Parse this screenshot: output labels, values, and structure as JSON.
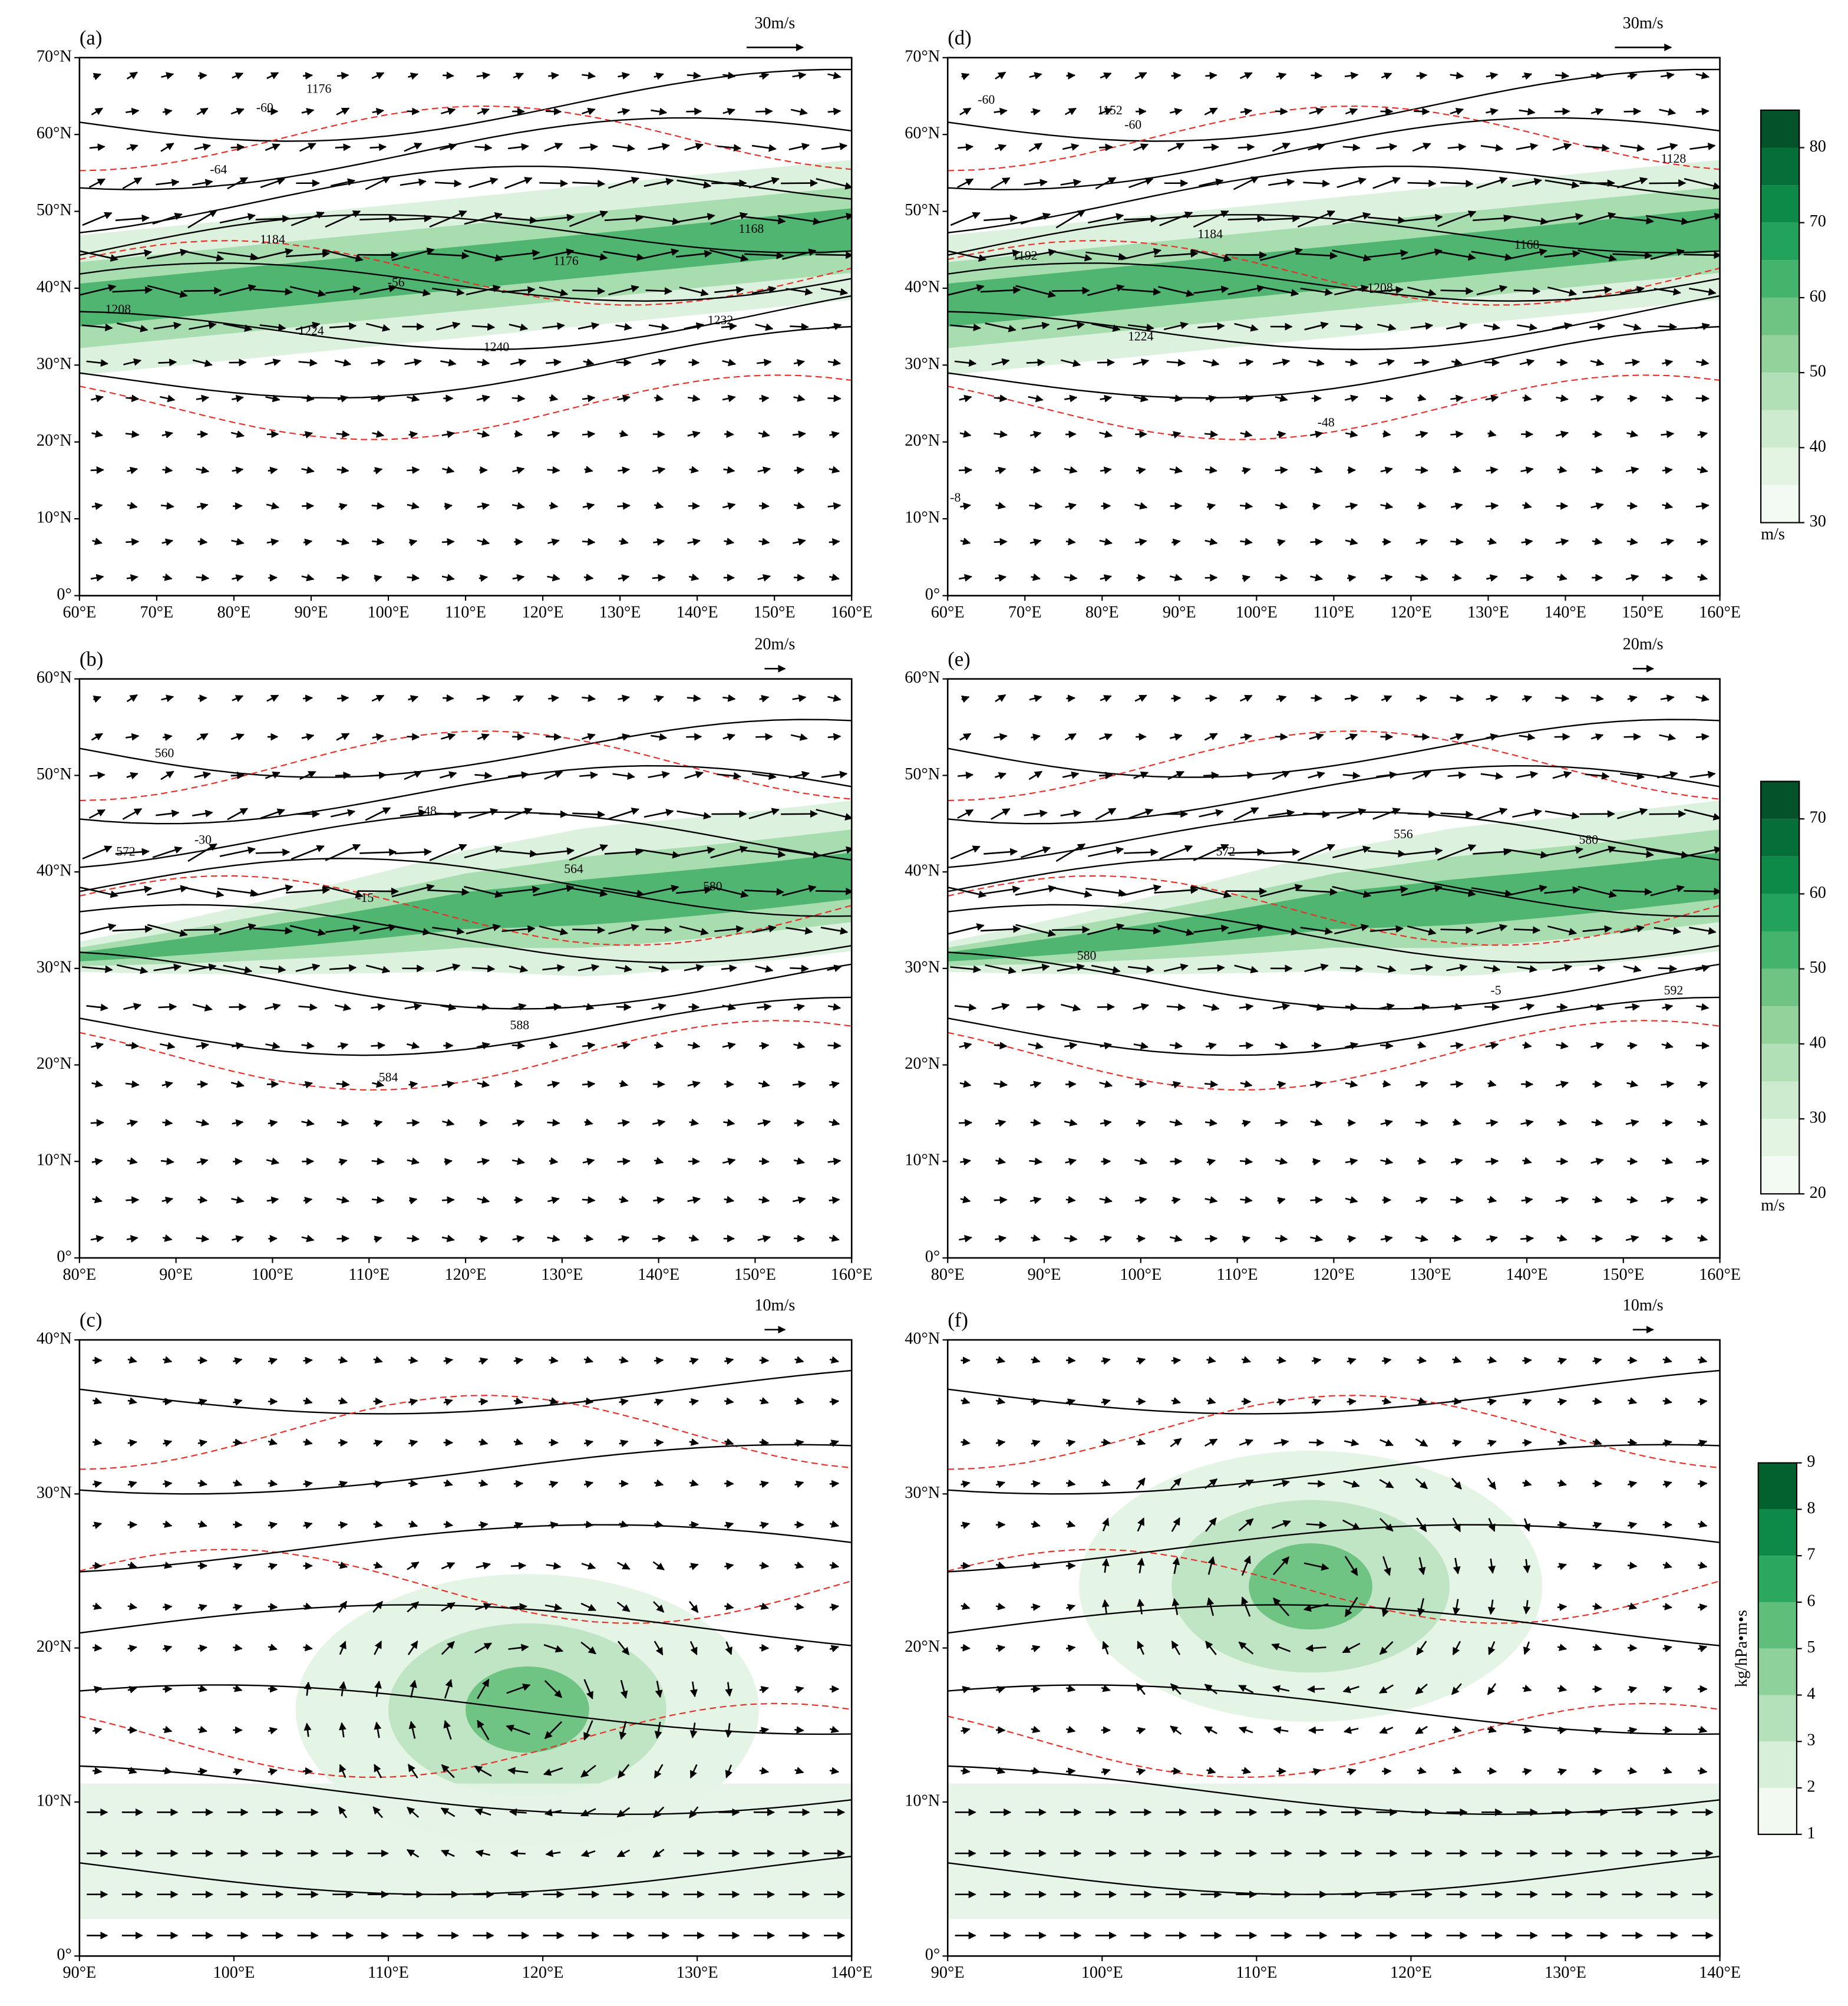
{
  "panels": [
    {
      "label": "(a)",
      "reference_vector": "30m/s",
      "xlim": [
        60,
        160
      ],
      "ylim": [
        0,
        70
      ],
      "xticks": [
        {
          "value": 60,
          "label": "60°E"
        },
        {
          "value": 70,
          "label": "70°E"
        },
        {
          "value": 80,
          "label": "80°E"
        },
        {
          "value": 90,
          "label": "90°E"
        },
        {
          "value": 100,
          "label": "100°E"
        },
        {
          "value": 110,
          "label": "110°E"
        },
        {
          "value": 120,
          "label": "120°E"
        },
        {
          "value": 130,
          "label": "130°E"
        },
        {
          "value": 140,
          "label": "140°E"
        },
        {
          "value": 150,
          "label": "150°E"
        },
        {
          "value": 160,
          "label": "160°E"
        }
      ],
      "yticks": [
        {
          "value": 0,
          "label": "0°"
        },
        {
          "value": 10,
          "label": "10°N"
        },
        {
          "value": 20,
          "label": "20°N"
        },
        {
          "value": 30,
          "label": "30°N"
        },
        {
          "value": 40,
          "label": "40°N"
        },
        {
          "value": 50,
          "label": "50°N"
        },
        {
          "value": 60,
          "label": "60°N"
        },
        {
          "value": 70,
          "label": "70°N"
        }
      ],
      "contour_labels": [
        "1176",
        "-60",
        "-64",
        "1184",
        "-56",
        "1176",
        "1168",
        "1232",
        "1224",
        "1240",
        "1208"
      ]
    },
    {
      "label": "(b)",
      "reference_vector": "20m/s",
      "xlim": [
        80,
        160
      ],
      "ylim": [
        0,
        60
      ],
      "xticks": [
        {
          "value": 80,
          "label": "80°E"
        },
        {
          "value": 90,
          "label": "90°E"
        },
        {
          "value": 100,
          "label": "100°E"
        },
        {
          "value": 110,
          "label": "110°E"
        },
        {
          "value": 120,
          "label": "120°E"
        },
        {
          "value": 130,
          "label": "130°E"
        },
        {
          "value": 140,
          "label": "140°E"
        },
        {
          "value": 150,
          "label": "150°E"
        },
        {
          "value": 160,
          "label": "160°E"
        }
      ],
      "yticks": [
        {
          "value": 0,
          "label": "0°"
        },
        {
          "value": 10,
          "label": "10°N"
        },
        {
          "value": 20,
          "label": "20°N"
        },
        {
          "value": 30,
          "label": "30°N"
        },
        {
          "value": 40,
          "label": "40°N"
        },
        {
          "value": 50,
          "label": "50°N"
        },
        {
          "value": 60,
          "label": "60°N"
        }
      ],
      "contour_labels": [
        "560",
        "548",
        "-30",
        "572",
        "564",
        "580",
        "-15",
        "584",
        "588"
      ]
    },
    {
      "label": "(c)",
      "reference_vector": "10m/s",
      "xlim": [
        90,
        140
      ],
      "ylim": [
        0,
        40
      ],
      "xticks": [
        {
          "value": 90,
          "label": "90°E"
        },
        {
          "value": 100,
          "label": "100°E"
        },
        {
          "value": 110,
          "label": "110°E"
        },
        {
          "value": 120,
          "label": "120°E"
        },
        {
          "value": 130,
          "label": "130°E"
        },
        {
          "value": 140,
          "label": "140°E"
        }
      ],
      "yticks": [
        {
          "value": 0,
          "label": "0°"
        },
        {
          "value": 10,
          "label": "10°N"
        },
        {
          "value": 20,
          "label": "20°N"
        },
        {
          "value": 30,
          "label": "30°N"
        },
        {
          "value": 40,
          "label": "40°N"
        }
      ],
      "contour_labels": []
    },
    {
      "label": "(d)",
      "reference_vector": "30m/s",
      "xlim": [
        60,
        160
      ],
      "ylim": [
        0,
        70
      ],
      "xticks": [
        {
          "value": 60,
          "label": "60°E"
        },
        {
          "value": 70,
          "label": "70°E"
        },
        {
          "value": 80,
          "label": "80°E"
        },
        {
          "value": 90,
          "label": "90°E"
        },
        {
          "value": 100,
          "label": "100°E"
        },
        {
          "value": 110,
          "label": "110°E"
        },
        {
          "value": 120,
          "label": "120°E"
        },
        {
          "value": 130,
          "label": "130°E"
        },
        {
          "value": 140,
          "label": "140°E"
        },
        {
          "value": 150,
          "label": "150°E"
        },
        {
          "value": 160,
          "label": "160°E"
        }
      ],
      "yticks": [
        {
          "value": 0,
          "label": "0°"
        },
        {
          "value": 10,
          "label": "10°N"
        },
        {
          "value": 20,
          "label": "20°N"
        },
        {
          "value": 30,
          "label": "30°N"
        },
        {
          "value": 40,
          "label": "40°N"
        },
        {
          "value": 50,
          "label": "50°N"
        },
        {
          "value": 60,
          "label": "60°N"
        },
        {
          "value": 70,
          "label": "70°N"
        }
      ],
      "contour_labels": [
        "-60",
        "1152",
        "-60",
        "1128",
        "1184",
        "1192",
        "1168",
        "1208",
        "1224",
        "-48",
        "-8"
      ]
    },
    {
      "label": "(e)",
      "reference_vector": "20m/s",
      "xlim": [
        80,
        160
      ],
      "ylim": [
        0,
        60
      ],
      "xticks": [
        {
          "value": 80,
          "label": "80°E"
        },
        {
          "value": 90,
          "label": "90°E"
        },
        {
          "value": 100,
          "label": "100°E"
        },
        {
          "value": 110,
          "label": "110°E"
        },
        {
          "value": 120,
          "label": "120°E"
        },
        {
          "value": 130,
          "label": "130°E"
        },
        {
          "value": 140,
          "label": "140°E"
        },
        {
          "value": 150,
          "label": "150°E"
        },
        {
          "value": 160,
          "label": "160°E"
        }
      ],
      "yticks": [
        {
          "value": 0,
          "label": "0°"
        },
        {
          "value": 10,
          "label": "10°N"
        },
        {
          "value": 20,
          "label": "20°N"
        },
        {
          "value": 30,
          "label": "30°N"
        },
        {
          "value": 40,
          "label": "40°N"
        },
        {
          "value": 50,
          "label": "50°N"
        },
        {
          "value": 60,
          "label": "60°N"
        }
      ],
      "contour_labels": [
        "556",
        "572",
        "580",
        "580",
        "592",
        "-5"
      ]
    },
    {
      "label": "(f)",
      "reference_vector": "10m/s",
      "xlim": [
        90,
        140
      ],
      "ylim": [
        0,
        40
      ],
      "xticks": [
        {
          "value": 90,
          "label": "90°E"
        },
        {
          "value": 100,
          "label": "100°E"
        },
        {
          "value": 110,
          "label": "110°E"
        },
        {
          "value": 120,
          "label": "120°E"
        },
        {
          "value": 130,
          "label": "130°E"
        },
        {
          "value": 140,
          "label": "140°E"
        }
      ],
      "yticks": [
        {
          "value": 0,
          "label": "0°"
        },
        {
          "value": 10,
          "label": "10°N"
        },
        {
          "value": 20,
          "label": "20°N"
        },
        {
          "value": 30,
          "label": "30°N"
        },
        {
          "value": 40,
          "label": "40°N"
        }
      ],
      "contour_labels": []
    }
  ],
  "colorbars": [
    {
      "lim": [
        30,
        85
      ],
      "ticks": [
        30,
        40,
        50,
        60,
        70,
        80
      ],
      "unit": "m/s",
      "colors": [
        "#f3faf3",
        "#e3f4e3",
        "#cdebcf",
        "#b2e0b6",
        "#93d39b",
        "#6fc483",
        "#44b36c",
        "#22a25b",
        "#0e8a48",
        "#066e39",
        "#03522a"
      ]
    },
    {
      "lim": [
        20,
        75
      ],
      "ticks": [
        20,
        30,
        40,
        50,
        60,
        70
      ],
      "unit": "m/s",
      "colors": [
        "#f3faf3",
        "#e3f4e3",
        "#cdebcf",
        "#b2e0b6",
        "#93d39b",
        "#6fc483",
        "#44b36c",
        "#22a25b",
        "#0e8a48",
        "#066e39",
        "#03522a"
      ]
    },
    {
      "lim": [
        1,
        9
      ],
      "ticks": [
        1,
        2,
        3,
        4,
        5,
        6,
        7,
        8,
        9
      ],
      "unit": "kg/hPa•m•s",
      "colors": [
        "#f1f9f1",
        "#d7efd9",
        "#b5e1ba",
        "#8fd19a",
        "#5fbf7a",
        "#2ca75f",
        "#0e8a48",
        "#03602f"
      ]
    }
  ]
}
